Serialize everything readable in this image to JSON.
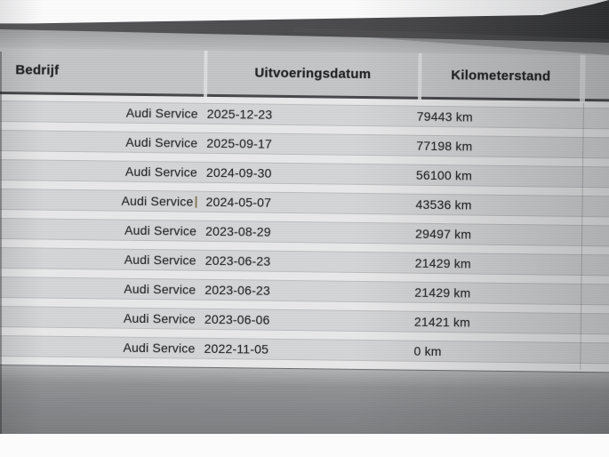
{
  "table": {
    "columns": [
      "Bedrijf",
      "Uitvoeringsdatum",
      "Kilometerstand"
    ],
    "rows": [
      {
        "company": "Audi Service",
        "date": "2025-12-23",
        "km": "79443 km"
      },
      {
        "company": "Audi Service",
        "date": "2025-09-17",
        "km": "77198 km"
      },
      {
        "company": "Audi Service",
        "date": "2024-09-30",
        "km": "56100 km"
      },
      {
        "company": "Audi Service",
        "date": "2024-05-07",
        "km": "43536 km",
        "caret": true
      },
      {
        "company": "Audi Service",
        "date": "2023-08-29",
        "km": "29497 km"
      },
      {
        "company": "Audi Service",
        "date": "2023-06-23",
        "km": "21429 km"
      },
      {
        "company": "Audi Service",
        "date": "2023-06-23",
        "km": "21429 km"
      },
      {
        "company": "Audi Service",
        "date": "2023-06-06",
        "km": "21421 km"
      },
      {
        "company": "Audi Service",
        "date": "2022-11-05",
        "km": "0 km"
      }
    ]
  },
  "colors": {
    "bezel_band_dark": "#39393b",
    "bezel_band_light": "#58585a",
    "header_bg": "#c4c5c7",
    "header_border": "#47474a",
    "header_text": "#202022",
    "row_stripe_bg": "#d4d5d7",
    "row_gap_bg": "#e9e9ea",
    "row_text": "#28282a",
    "area_below_table": "#85878a",
    "photo_edges": "#fbfbfc",
    "caret_artifact": "#8a7a58"
  }
}
